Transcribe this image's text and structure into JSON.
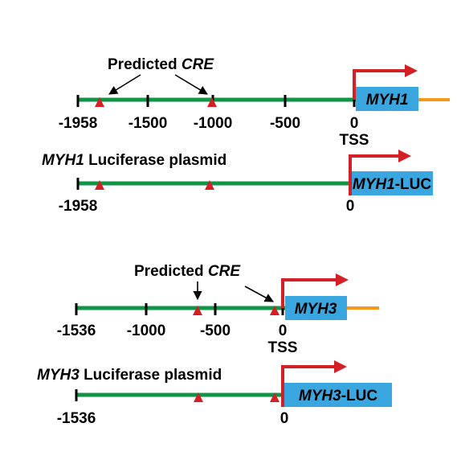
{
  "colors": {
    "promoter_line": "#0f9448",
    "gene_box": "#3aa6df",
    "utr_line": "#f29a1c",
    "cre_triangle": "#d51f26",
    "tss_arrow": "#d51f26",
    "ink": "#000000"
  },
  "myh1": {
    "annotation": {
      "prefix": "Predicted ",
      "italic": "CRE"
    },
    "gene": "MYH1",
    "ticks": [
      "-1958",
      "-1500",
      "-1000",
      "-500",
      "0"
    ],
    "tss_label": "TSS",
    "plasmid_label": {
      "italic": "MYH1",
      "rest": " Luciferase plasmid"
    },
    "reporter": {
      "italic": "MYH1",
      "rest": "-LUC"
    },
    "plasmid_start": "-1958",
    "plasmid_end": "0"
  },
  "myh3": {
    "annotation": {
      "prefix": "Predicted ",
      "italic": "CRE"
    },
    "gene": "MYH3",
    "ticks": [
      "-1536",
      "-1000",
      "-500",
      "0"
    ],
    "tss_label": "TSS",
    "plasmid_label": {
      "italic": "MYH3",
      "rest": " Luciferase plasmid"
    },
    "reporter": {
      "italic": "MYH3",
      "rest": "-LUC"
    },
    "plasmid_start": "-1536",
    "plasmid_end": "0"
  }
}
